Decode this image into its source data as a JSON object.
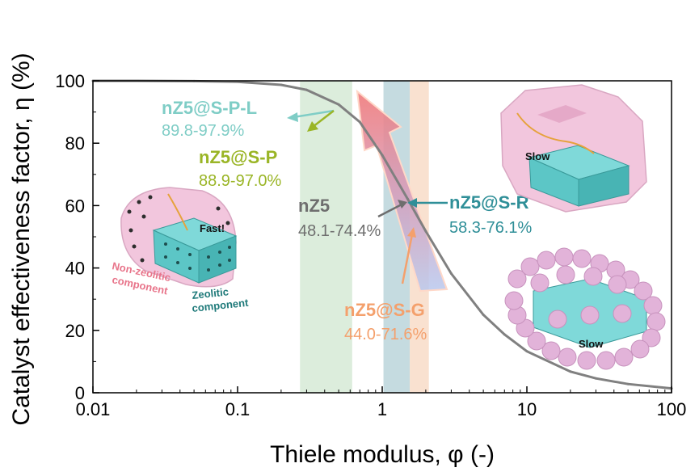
{
  "chart_data": {
    "type": "line",
    "title": "",
    "xlabel": "Thiele modulus, φ (-)",
    "ylabel": "Catalyst effectiveness factor, η (%)",
    "xscale": "log",
    "xlim": [
      0.01,
      100
    ],
    "ylim": [
      0,
      100
    ],
    "xticks": [
      "0.01",
      "0.1",
      "1",
      "10",
      "100"
    ],
    "yticks": [
      "0",
      "20",
      "40",
      "60",
      "80",
      "100"
    ],
    "grid": false,
    "curve": {
      "description_color": "#808080",
      "x": [
        0.01,
        0.02,
        0.05,
        0.1,
        0.2,
        0.3,
        0.5,
        0.7,
        1,
        1.5,
        2,
        3,
        5,
        7,
        10,
        20,
        30,
        50,
        100
      ],
      "y": [
        100,
        100,
        99.9,
        99.7,
        98.7,
        97.1,
        92.4,
        86.8,
        76.2,
        62.1,
        51.8,
        38.2,
        25,
        18.7,
        13.3,
        6.8,
        4.6,
        2.8,
        1.4
      ]
    },
    "bands": [
      {
        "name": "nZ5",
        "x_range": [
          0.27,
          0.62
        ],
        "color": "#b9dcb9"
      },
      {
        "name": "nZ5@S-R",
        "x_range": [
          1.02,
          1.55
        ],
        "color": "#8cb8c2"
      },
      {
        "name": "nZ5@S-G",
        "x_range": [
          1.55,
          2.1
        ],
        "color": "#f3c3a2"
      }
    ],
    "annotations": [
      {
        "name": "nZ5@S-P-L",
        "range": "89.8-97.9%",
        "color": "#7fcdc6"
      },
      {
        "name": "nZ5@S-P",
        "range": "88.9-97.0%",
        "color": "#9ab526"
      },
      {
        "name": "nZ5",
        "range": "48.1-74.4%",
        "color": "#6e6e6e"
      },
      {
        "name": "nZ5@S-R",
        "range": "58.3-76.1%",
        "color": "#2f8f98"
      },
      {
        "name": "nZ5@S-G",
        "range": "44.0-71.6%",
        "color": "#f4a06c"
      }
    ]
  },
  "illustrations": {
    "fast_label": "Fast!",
    "slow_label_top": "Slow",
    "slow_label_bottom": "Slow",
    "non_zeolitic_line1": "Non-zeolitic",
    "non_zeolitic_line2": "component",
    "zeolitic_line1": "Zeolitic",
    "zeolitic_line2": "component",
    "non_zeolitic_color": "#e8748a",
    "zeolitic_color": "#1f7a7a"
  }
}
